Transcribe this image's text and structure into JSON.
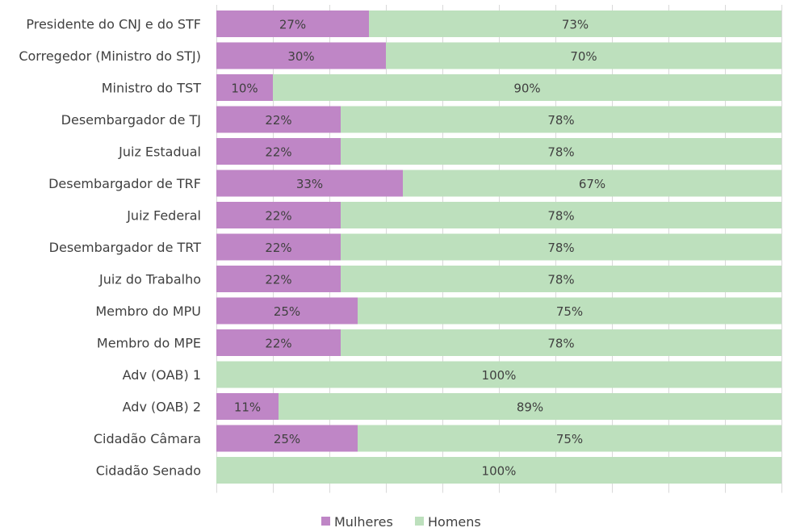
{
  "chart_data": {
    "type": "bar",
    "orientation": "horizontal",
    "stacked": "percent",
    "xlim": [
      0,
      100
    ],
    "grid": true,
    "legend_position": "bottom",
    "title": "",
    "xlabel": "",
    "ylabel": "",
    "categories": [
      "Presidente do CNJ e do STF",
      "Corregedor (Ministro do STJ)",
      "Ministro do TST",
      "Desembargador de TJ",
      "Juiz Estadual",
      "Desembargador de TRF",
      "Juiz Federal",
      "Desembargador de TRT",
      "Juiz do Trabalho",
      "Membro do MPU",
      "Membro do MPE",
      "Adv (OAB) 1",
      "Adv (OAB) 2",
      "Cidadão Câmara",
      "Cidadão Senado"
    ],
    "series": [
      {
        "name": "Mulheres",
        "color": "#bf86c6",
        "values": [
          27,
          30,
          10,
          22,
          22,
          33,
          22,
          22,
          22,
          25,
          22,
          0,
          11,
          25,
          0
        ]
      },
      {
        "name": "Homens",
        "color": "#bde0bd",
        "values": [
          73,
          70,
          90,
          78,
          78,
          67,
          78,
          78,
          78,
          75,
          78,
          100,
          89,
          75,
          100
        ]
      }
    ]
  }
}
